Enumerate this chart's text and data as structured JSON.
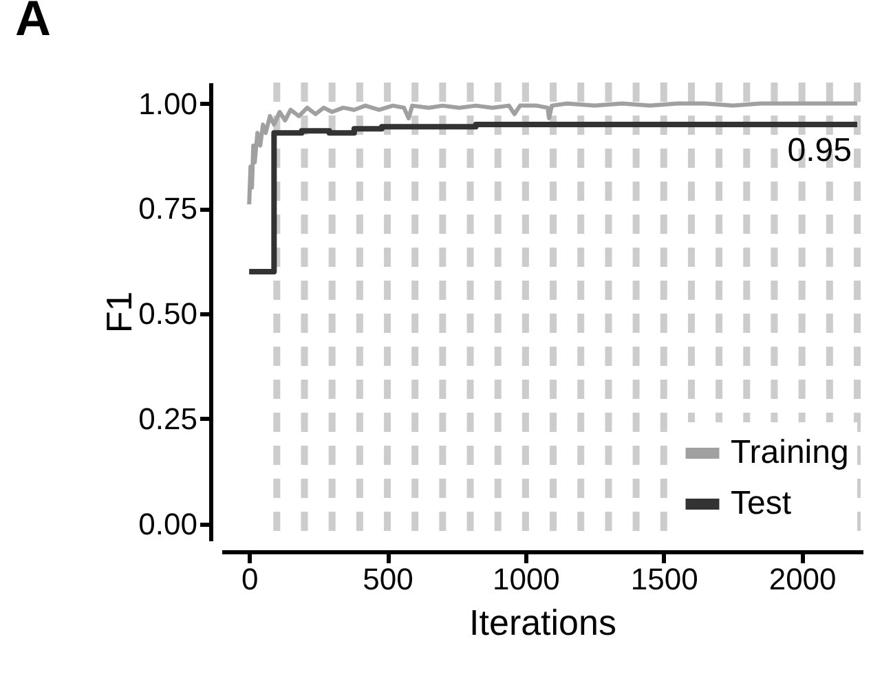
{
  "chart_data": {
    "type": "line",
    "title": "A",
    "xlabel": "Iterations",
    "ylabel": "F1",
    "xlim": [
      -100,
      2220
    ],
    "ylim": [
      -0.04,
      1.05
    ],
    "xticks": [
      0,
      500,
      1000,
      1500,
      2000
    ],
    "yticks": [
      {
        "value": 0,
        "label": "0.00"
      },
      {
        "value": 0.25,
        "label": "0.25"
      },
      {
        "value": 0.5,
        "label": "0.50"
      },
      {
        "value": 0.75,
        "label": "0.75"
      },
      {
        "value": 1,
        "label": "1.00"
      }
    ],
    "grid": false,
    "legend": "bottom right",
    "line_style": "solid",
    "series": [
      {
        "name": "Training",
        "color": "#a0a0a0",
        "x": [
          0,
          5,
          10,
          15,
          20,
          30,
          40,
          50,
          60,
          75,
          90,
          110,
          130,
          150,
          180,
          210,
          240,
          270,
          300,
          340,
          380,
          420,
          470,
          520,
          560,
          577,
          590,
          650,
          700,
          760,
          820,
          880,
          940,
          960,
          980,
          1040,
          1080,
          1085,
          1095,
          1150,
          1250,
          1350,
          1450,
          1550,
          1650,
          1750,
          1850,
          1950,
          2050,
          2150,
          2200
        ],
        "values": [
          0.76,
          0.85,
          0.8,
          0.9,
          0.86,
          0.93,
          0.9,
          0.95,
          0.93,
          0.97,
          0.95,
          0.98,
          0.96,
          0.985,
          0.97,
          0.99,
          0.975,
          0.99,
          0.98,
          0.99,
          0.985,
          0.995,
          0.985,
          0.995,
          0.99,
          0.965,
          0.995,
          0.99,
          0.995,
          0.99,
          0.995,
          0.99,
          0.995,
          0.975,
          0.995,
          0.995,
          0.99,
          0.965,
          0.995,
          1.0,
          0.995,
          1.0,
          0.995,
          1.0,
          1.0,
          0.995,
          1.0,
          1.0,
          1.0,
          1.0,
          1.0
        ]
      },
      {
        "name": "Test",
        "type": "step",
        "color": "#333333",
        "x": [
          0,
          90,
          190,
          290,
          380,
          480,
          700,
          820,
          1000,
          1300,
          1500,
          1700,
          2200
        ],
        "values": [
          0.6,
          0.93,
          0.935,
          0.93,
          0.94,
          0.945,
          0.945,
          0.95,
          0.95,
          0.95,
          0.95,
          0.95,
          0.95
        ]
      }
    ],
    "ref_lines": [
      {
        "axis": "x",
        "value": 100,
        "color": "#cccccc",
        "line_style": "dashed"
      },
      {
        "axis": "x",
        "value": 200,
        "color": "#cccccc",
        "line_style": "dashed"
      },
      {
        "axis": "x",
        "value": 300,
        "color": "#cccccc",
        "line_style": "dashed"
      },
      {
        "axis": "x",
        "value": 400,
        "color": "#cccccc",
        "line_style": "dashed"
      },
      {
        "axis": "x",
        "value": 500,
        "color": "#cccccc",
        "line_style": "dashed"
      },
      {
        "axis": "x",
        "value": 600,
        "color": "#cccccc",
        "line_style": "dashed"
      },
      {
        "axis": "x",
        "value": 700,
        "color": "#cccccc",
        "line_style": "dashed"
      },
      {
        "axis": "x",
        "value": 800,
        "color": "#cccccc",
        "line_style": "dashed"
      },
      {
        "axis": "x",
        "value": 900,
        "color": "#cccccc",
        "line_style": "dashed"
      },
      {
        "axis": "x",
        "value": 1000,
        "color": "#cccccc",
        "line_style": "dashed"
      },
      {
        "axis": "x",
        "value": 1100,
        "color": "#cccccc",
        "line_style": "dashed"
      },
      {
        "axis": "x",
        "value": 1200,
        "color": "#cccccc",
        "line_style": "dashed"
      },
      {
        "axis": "x",
        "value": 1300,
        "color": "#cccccc",
        "line_style": "dashed"
      },
      {
        "axis": "x",
        "value": 1400,
        "color": "#cccccc",
        "line_style": "dashed"
      },
      {
        "axis": "x",
        "value": 1500,
        "color": "#cccccc",
        "line_style": "dashed"
      },
      {
        "axis": "x",
        "value": 1600,
        "color": "#cccccc",
        "line_style": "dashed"
      },
      {
        "axis": "x",
        "value": 1700,
        "color": "#cccccc",
        "line_style": "dashed"
      },
      {
        "axis": "x",
        "value": 1800,
        "color": "#cccccc",
        "line_style": "dashed"
      },
      {
        "axis": "x",
        "value": 1900,
        "color": "#cccccc",
        "line_style": "dashed"
      },
      {
        "axis": "x",
        "value": 2000,
        "color": "#cccccc",
        "line_style": "dashed"
      },
      {
        "axis": "x",
        "value": 2100,
        "color": "#cccccc",
        "line_style": "dashed"
      },
      {
        "axis": "x",
        "value": 2200,
        "color": "#cccccc",
        "line_style": "dashed"
      }
    ],
    "annotations": [
      "0.95"
    ]
  }
}
